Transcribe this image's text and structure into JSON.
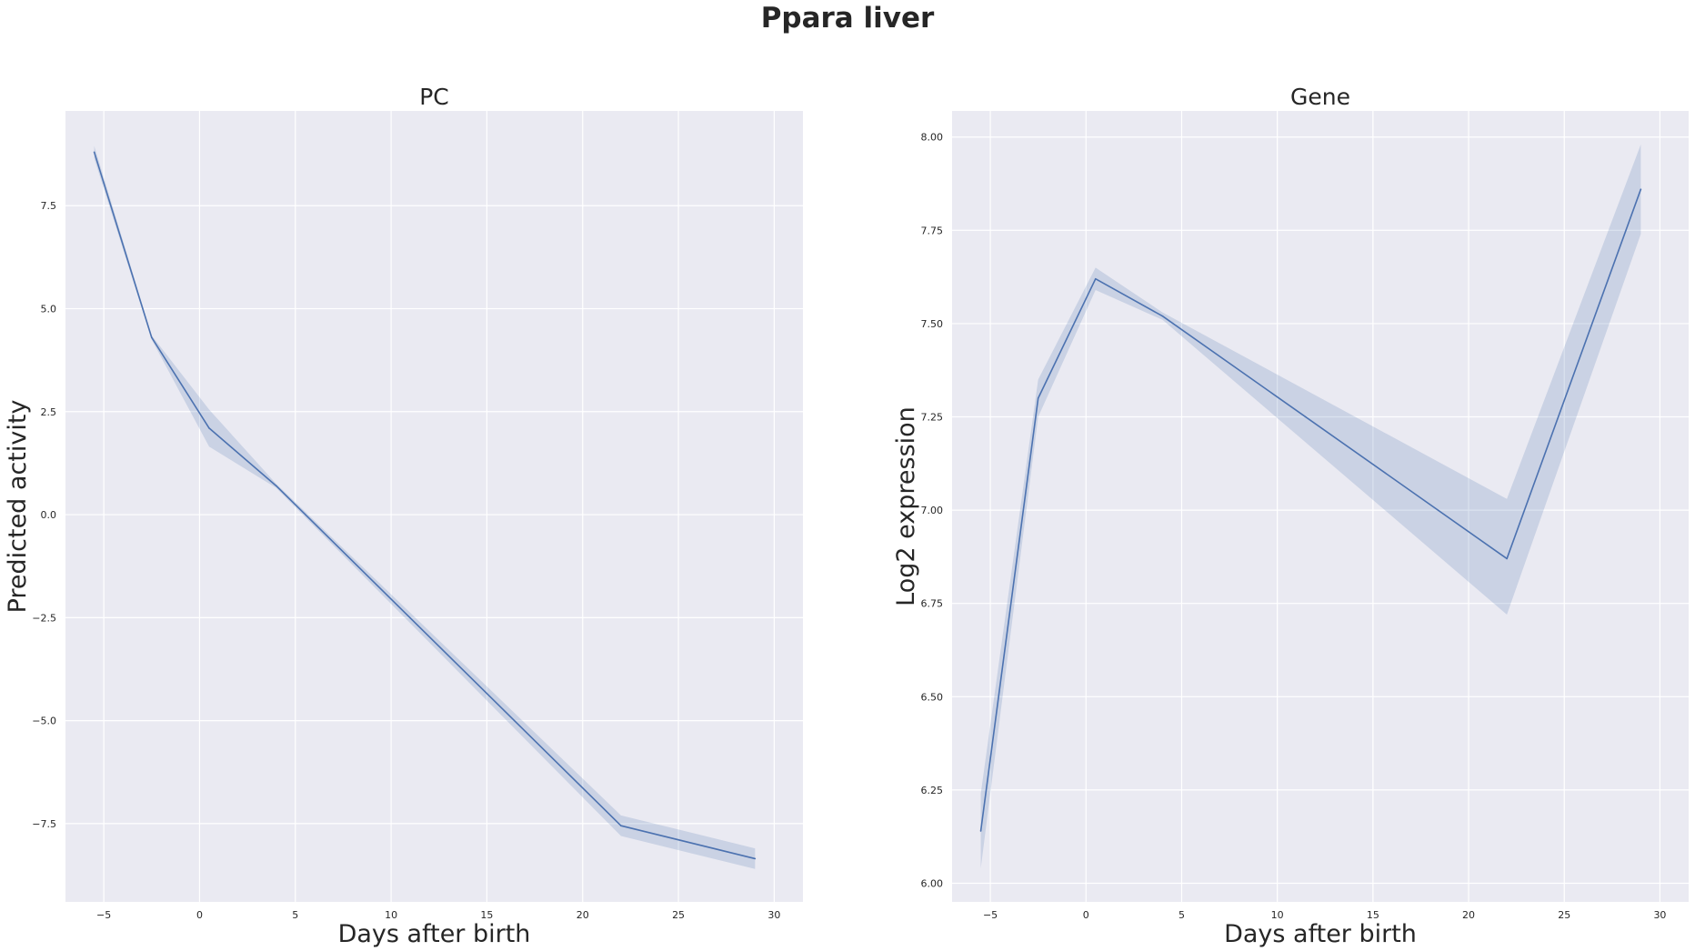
{
  "figure": {
    "title": "Ppara liver"
  },
  "chart_data": [
    {
      "type": "line",
      "title": "PC",
      "xlabel": "Days after birth",
      "ylabel": "Predicted activity",
      "xlim": [
        -7,
        31.5
      ],
      "ylim": [
        -9.4,
        9.8
      ],
      "xticks": [
        -5,
        0,
        5,
        10,
        15,
        20,
        25,
        30
      ],
      "xtick_labels": [
        "−5",
        "0",
        "5",
        "10",
        "15",
        "20",
        "25",
        "30"
      ],
      "yticks": [
        -7.5,
        -5.0,
        -2.5,
        0.0,
        2.5,
        5.0,
        7.5
      ],
      "ytick_labels": [
        "−7.5",
        "−5.0",
        "−2.5",
        "0.0",
        "2.5",
        "5.0",
        "7.5"
      ],
      "grid": true,
      "background": "#eaeaf2",
      "line_color": "#4c72b0",
      "x": [
        -5.5,
        -2.5,
        0.5,
        4,
        22,
        29
      ],
      "series": [
        {
          "values": [
            8.8,
            4.3,
            2.1,
            0.7,
            -7.55,
            -8.35
          ],
          "ci_low": [
            8.65,
            4.25,
            1.65,
            0.65,
            -7.8,
            -8.6
          ],
          "ci_high": [
            8.95,
            4.35,
            2.55,
            0.75,
            -7.3,
            -8.1
          ]
        }
      ]
    },
    {
      "type": "line",
      "title": "Gene",
      "xlabel": "Days after birth",
      "ylabel": "Log2 expression",
      "xlim": [
        -7,
        31.5
      ],
      "ylim": [
        5.95,
        8.07
      ],
      "xticks": [
        -5,
        0,
        5,
        10,
        15,
        20,
        25,
        30
      ],
      "xtick_labels": [
        "−5",
        "0",
        "5",
        "10",
        "15",
        "20",
        "25",
        "30"
      ],
      "yticks": [
        6.0,
        6.25,
        6.5,
        6.75,
        7.0,
        7.25,
        7.5,
        7.75,
        8.0
      ],
      "ytick_labels": [
        "6.00",
        "6.25",
        "6.50",
        "6.75",
        "7.00",
        "7.25",
        "7.50",
        "7.75",
        "8.00"
      ],
      "grid": true,
      "background": "#eaeaf2",
      "line_color": "#4c72b0",
      "x": [
        -5.5,
        -2.5,
        0.5,
        4,
        22,
        29
      ],
      "series": [
        {
          "values": [
            6.14,
            7.3,
            7.62,
            7.52,
            6.87,
            7.86
          ],
          "ci_low": [
            6.04,
            7.25,
            7.59,
            7.51,
            6.72,
            7.74
          ],
          "ci_high": [
            6.24,
            7.35,
            7.65,
            7.53,
            7.03,
            7.98
          ]
        }
      ]
    }
  ]
}
